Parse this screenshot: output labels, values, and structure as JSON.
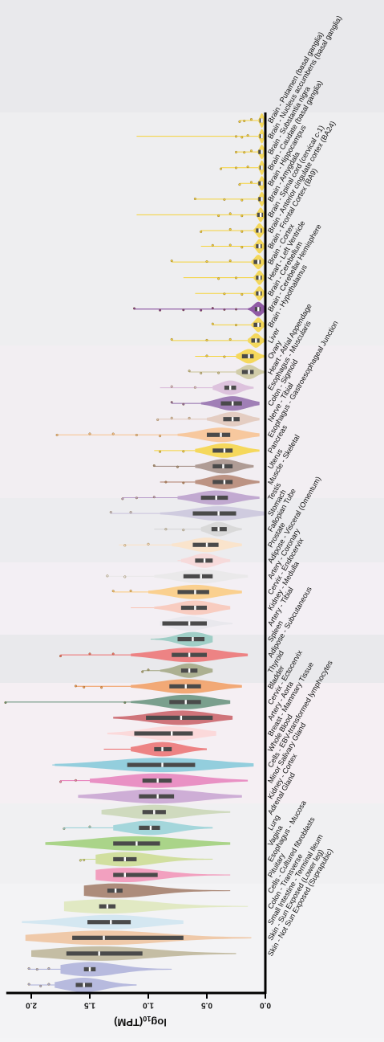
{
  "chart_data": {
    "type": "violin",
    "orientation": "horizontal",
    "axis": {
      "label_base": "log",
      "label_sub": "10",
      "label_rest": "(TPM)",
      "range": [
        0.0,
        2.2
      ],
      "reversed": true,
      "ticks": [
        0.0,
        0.5,
        1.0,
        1.5,
        2.0
      ],
      "tick_labels": [
        "0.0",
        "0.5",
        "1.0",
        "1.5",
        "2.0"
      ]
    },
    "grid": false,
    "legend": "none",
    "series": [
      {
        "name": "Brain - Putamen (basal ganglia)",
        "color": "#f5d33a",
        "q1": 0.02,
        "median": 0.03,
        "q3": 0.05,
        "min": 0.0,
        "max": 0.22,
        "wmax": 0.06,
        "outliers": [
          0.12,
          0.18,
          0.22
        ]
      },
      {
        "name": "Brain - Nucleus accumbens (basal ganglia)",
        "color": "#f5d33a",
        "q1": 0.02,
        "median": 0.03,
        "q3": 0.05,
        "min": 0.0,
        "max": 1.1,
        "wmax": 0.06,
        "outliers": [
          0.15,
          0.2,
          0.25
        ]
      },
      {
        "name": "Brain - Substantia nigra",
        "color": "#f5d33a",
        "q1": 0.02,
        "median": 0.03,
        "q3": 0.06,
        "min": 0.0,
        "max": 0.25,
        "wmax": 0.07,
        "outliers": [
          0.12,
          0.18,
          0.25
        ]
      },
      {
        "name": "Brain - Caudate (basal ganglia)",
        "color": "#f5d33a",
        "q1": 0.02,
        "median": 0.03,
        "q3": 0.05,
        "min": 0.0,
        "max": 0.38,
        "wmax": 0.06,
        "outliers": [
          0.15,
          0.25,
          0.38
        ]
      },
      {
        "name": "Brain - Hippocampus",
        "color": "#f5d33a",
        "q1": 0.02,
        "median": 0.03,
        "q3": 0.06,
        "min": 0.0,
        "max": 0.22,
        "wmax": 0.07,
        "outliers": [
          0.12,
          0.22
        ]
      },
      {
        "name": "Brain - Amygdala",
        "color": "#f5d33a",
        "q1": 0.02,
        "median": 0.03,
        "q3": 0.06,
        "min": 0.0,
        "max": 0.6,
        "wmax": 0.07,
        "outliers": [
          0.2,
          0.35,
          0.6
        ]
      },
      {
        "name": "Brain - Spinal cord (cervical c-1)",
        "color": "#f5d33a",
        "q1": 0.02,
        "median": 0.04,
        "q3": 0.07,
        "min": 0.0,
        "max": 1.1,
        "wmax": 0.08,
        "outliers": [
          0.2,
          0.3,
          0.4
        ]
      },
      {
        "name": "Brain - Anterior cingulate cortex (BA24)",
        "color": "#f5d33a",
        "q1": 0.03,
        "median": 0.05,
        "q3": 0.08,
        "min": 0.0,
        "max": 0.55,
        "wmax": 0.1,
        "outliers": [
          0.2,
          0.3,
          0.55
        ]
      },
      {
        "name": "Brain - Frontal Cortex (BA9)",
        "color": "#f5d33a",
        "q1": 0.03,
        "median": 0.05,
        "q3": 0.08,
        "min": 0.0,
        "max": 0.55,
        "wmax": 0.1,
        "outliers": [
          0.2,
          0.3,
          0.45
        ]
      },
      {
        "name": "Brain - Cortex",
        "color": "#f5d33a",
        "q1": 0.04,
        "median": 0.06,
        "q3": 0.1,
        "min": 0.0,
        "max": 0.8,
        "wmax": 0.12,
        "outliers": [
          0.3,
          0.5,
          0.8
        ]
      },
      {
        "name": "Heart - Left Ventricle",
        "color": "#f5d33a",
        "q1": 0.03,
        "median": 0.05,
        "q3": 0.08,
        "min": 0.0,
        "max": 0.7,
        "wmax": 0.1,
        "outliers": [
          0.25,
          0.4
        ]
      },
      {
        "name": "Brain - Cerebellum",
        "color": "#f5d33a",
        "q1": 0.03,
        "median": 0.05,
        "q3": 0.08,
        "min": 0.0,
        "max": 0.6,
        "wmax": 0.1,
        "outliers": [
          0.2,
          0.35
        ]
      },
      {
        "name": "Brain - Cerebellar Hemisphere",
        "color": "#7b3a94",
        "q1": 0.04,
        "median": 0.06,
        "q3": 0.09,
        "min": 0.0,
        "max": 1.12,
        "wmax": 0.15,
        "outliers": [
          0.25,
          0.35,
          0.45,
          0.55,
          0.7,
          0.9,
          1.12
        ]
      },
      {
        "name": "Brain - Hypothalamus",
        "color": "#f5d33a",
        "q1": 0.04,
        "median": 0.06,
        "q3": 0.1,
        "min": 0.0,
        "max": 0.45,
        "wmax": 0.12,
        "outliers": [
          0.25,
          0.45
        ]
      },
      {
        "name": "Liver",
        "color": "#f5d33a",
        "q1": 0.05,
        "median": 0.08,
        "q3": 0.12,
        "min": 0.0,
        "max": 0.8,
        "wmax": 0.15,
        "outliers": [
          0.3,
          0.5,
          0.8
        ]
      },
      {
        "name": "Ovary",
        "color": "#f5d33a",
        "q1": 0.1,
        "median": 0.14,
        "q3": 0.2,
        "min": 0.0,
        "max": 0.6,
        "wmax": 0.25,
        "outliers": [
          0.35,
          0.5
        ]
      },
      {
        "name": "Heart - Atrial Appendage",
        "color": "#c9c497",
        "q1": 0.1,
        "median": 0.14,
        "q3": 0.2,
        "min": 0.0,
        "max": 0.65,
        "wmax": 0.25,
        "outliers": [
          0.4,
          0.55,
          0.65
        ]
      },
      {
        "name": "Esophagus - Muscularis",
        "color": "#d8b8d8",
        "q1": 0.25,
        "median": 0.3,
        "q3": 0.35,
        "min": 0.1,
        "max": 0.9,
        "wmax": 0.45,
        "outliers": [
          0.6,
          0.8
        ]
      },
      {
        "name": "Colon - Sigmoid",
        "color": "#8e67a8",
        "q1": 0.2,
        "median": 0.28,
        "q3": 0.38,
        "min": 0.05,
        "max": 0.8,
        "wmax": 0.55,
        "outliers": [
          0.7,
          0.8
        ]
      },
      {
        "name": "Nerve - Tibial",
        "color": "#e0c6b7",
        "q1": 0.22,
        "median": 0.28,
        "q3": 0.36,
        "min": 0.05,
        "max": 0.92,
        "wmax": 0.5,
        "outliers": [
          0.65,
          0.8,
          0.92
        ]
      },
      {
        "name": "Esophagus - Gastroesophageal Junction",
        "color": "#f8c08b",
        "q1": 0.3,
        "median": 0.38,
        "q3": 0.5,
        "min": 0.05,
        "max": 1.78,
        "wmax": 0.75,
        "outliers": [
          0.9,
          1.1,
          1.3,
          1.5,
          1.78
        ]
      },
      {
        "name": "Pancreas",
        "color": "#f5d33a",
        "q1": 0.28,
        "median": 0.35,
        "q3": 0.45,
        "min": 0.05,
        "max": 0.95,
        "wmax": 0.6,
        "outliers": [
          0.7,
          0.9
        ]
      },
      {
        "name": "Uterus",
        "color": "#a08a80",
        "q1": 0.28,
        "median": 0.36,
        "q3": 0.45,
        "min": 0.1,
        "max": 0.95,
        "wmax": 0.6,
        "outliers": [
          0.75,
          0.95
        ]
      },
      {
        "name": "Muscle - Skeletal",
        "color": "#b07f6a",
        "q1": 0.28,
        "median": 0.35,
        "q3": 0.45,
        "min": 0.05,
        "max": 0.9,
        "wmax": 0.6,
        "outliers": [
          0.7,
          0.85
        ]
      },
      {
        "name": "Testis",
        "color": "#b79ac9",
        "q1": 0.32,
        "median": 0.42,
        "q3": 0.55,
        "min": 0.05,
        "max": 1.22,
        "wmax": 0.75,
        "outliers": [
          0.95,
          1.1,
          1.22
        ]
      },
      {
        "name": "Stomach",
        "color": "#c8c3dc",
        "q1": 0.25,
        "median": 0.4,
        "q3": 0.62,
        "min": 0.0,
        "max": 1.32,
        "wmax": 0.9,
        "outliers": [
          1.15,
          1.32
        ]
      },
      {
        "name": "Fallopian Tube",
        "color": "#d4d4d4",
        "q1": 0.33,
        "median": 0.4,
        "q3": 0.46,
        "min": 0.2,
        "max": 0.95,
        "wmax": 0.55,
        "outliers": [
          0.7,
          0.85
        ]
      },
      {
        "name": "Prostate",
        "color": "#fde2c4",
        "q1": 0.4,
        "median": 0.5,
        "q3": 0.62,
        "min": 0.2,
        "max": 1.25,
        "wmax": 0.8,
        "outliers": [
          1.0,
          1.2
        ]
      },
      {
        "name": "Adipose - Visceral (Omentum)",
        "color": "#f8d6d6",
        "q1": 0.45,
        "median": 0.52,
        "q3": 0.6,
        "min": 0.3,
        "max": 0.75,
        "wmax": 0.72,
        "outliers": []
      },
      {
        "name": "Artery - Coronary",
        "color": "#e8e8e8",
        "q1": 0.45,
        "median": 0.55,
        "q3": 0.7,
        "min": 0.15,
        "max": 1.35,
        "wmax": 0.95,
        "outliers": [
          1.2,
          1.35
        ]
      },
      {
        "name": "Cervix - Endocervix",
        "color": "#fbc979",
        "q1": 0.48,
        "median": 0.6,
        "q3": 0.75,
        "min": 0.2,
        "max": 1.3,
        "wmax": 1.0,
        "outliers": [
          1.15,
          1.3
        ]
      },
      {
        "name": "Kidney - Medulla",
        "color": "#f9c4b4",
        "q1": 0.5,
        "median": 0.6,
        "q3": 0.72,
        "min": 0.3,
        "max": 1.15,
        "wmax": 0.95,
        "outliers": []
      },
      {
        "name": "Artery - Tibial",
        "color": "#e6e6ec",
        "q1": 0.5,
        "median": 0.65,
        "q3": 0.88,
        "min": 0.28,
        "max": 0.9,
        "wmax": 0.9,
        "outliers": []
      },
      {
        "name": "Spleen",
        "color": "#8fc8bd",
        "q1": 0.52,
        "median": 0.62,
        "q3": 0.75,
        "min": 0.45,
        "max": 0.98,
        "wmax": 0.95,
        "outliers": []
      },
      {
        "name": "Adipose - Subcutaneous",
        "color": "#ee6d6d",
        "q1": 0.5,
        "median": 0.65,
        "q3": 0.8,
        "min": 0.15,
        "max": 1.75,
        "wmax": 1.15,
        "outliers": [
          1.3,
          1.5,
          1.75
        ]
      },
      {
        "name": "Thyroid",
        "color": "#9fa37d",
        "q1": 0.58,
        "median": 0.65,
        "q3": 0.72,
        "min": 0.45,
        "max": 1.05,
        "wmax": 0.9,
        "outliers": [
          1.0,
          1.05
        ]
      },
      {
        "name": "Bladder",
        "color": "#f29a5a",
        "q1": 0.55,
        "median": 0.68,
        "q3": 0.82,
        "min": 0.2,
        "max": 1.62,
        "wmax": 1.15,
        "outliers": [
          1.4,
          1.55,
          1.62
        ]
      },
      {
        "name": "Cervix - Ectocervix",
        "color": "#5f8e76",
        "q1": 0.55,
        "median": 0.68,
        "q3": 0.82,
        "min": 0.3,
        "max": 2.22,
        "wmax": 1.15,
        "outliers": [
          1.2,
          2.22
        ]
      },
      {
        "name": "Artery - Aorta",
        "color": "#c7595f",
        "q1": 0.45,
        "median": 0.72,
        "q3": 1.02,
        "min": 0.28,
        "max": 1.3,
        "wmax": 1.3,
        "outliers": []
      },
      {
        "name": "Breast - Mammary Tissue",
        "color": "#fcd4d4",
        "q1": 0.62,
        "median": 0.8,
        "q3": 1.12,
        "min": 0.42,
        "max": 1.35,
        "wmax": 1.35,
        "outliers": []
      },
      {
        "name": "Whole Blood",
        "color": "#ec6b6b",
        "q1": 0.8,
        "median": 0.88,
        "q3": 0.95,
        "min": 0.5,
        "max": 1.38,
        "wmax": 1.15,
        "outliers": []
      },
      {
        "name": "Cells - EBV-transformed lymphocytes",
        "color": "#7ec7d8",
        "q1": 0.6,
        "median": 0.88,
        "q3": 1.18,
        "min": 0.1,
        "max": 1.82,
        "wmax": 1.8,
        "outliers": []
      },
      {
        "name": "Minor Salivary Gland",
        "color": "#e77cb9",
        "q1": 0.8,
        "median": 0.92,
        "q3": 1.05,
        "min": 0.15,
        "max": 1.75,
        "wmax": 1.5,
        "outliers": [
          1.62,
          1.75
        ]
      },
      {
        "name": "Kidney - Cortex",
        "color": "#c6a0cf",
        "q1": 0.78,
        "median": 0.92,
        "q3": 1.08,
        "min": 0.2,
        "max": 1.6,
        "wmax": 1.6,
        "outliers": []
      },
      {
        "name": "Adrenal Gland",
        "color": "#c7d4b2",
        "q1": 0.85,
        "median": 0.95,
        "q3": 1.05,
        "min": 0.3,
        "max": 1.4,
        "wmax": 1.4,
        "outliers": []
      },
      {
        "name": "Lung",
        "color": "#92cfd5",
        "q1": 0.9,
        "median": 0.98,
        "q3": 1.08,
        "min": 0.45,
        "max": 1.72,
        "wmax": 1.3,
        "outliers": [
          1.5,
          1.72
        ]
      },
      {
        "name": "Vagina",
        "color": "#9acd72",
        "q1": 0.9,
        "median": 1.1,
        "q3": 1.3,
        "min": 0.3,
        "max": 1.88,
        "wmax": 1.88,
        "outliers": []
      },
      {
        "name": "Esophagus - Mucosa",
        "color": "#c9db8c",
        "q1": 1.1,
        "median": 1.2,
        "q3": 1.3,
        "min": 0.45,
        "max": 1.58,
        "wmax": 1.45,
        "outliers": [
          1.55,
          1.58
        ]
      },
      {
        "name": "Pituitary",
        "color": "#f18db3",
        "q1": 0.92,
        "median": 1.2,
        "q3": 1.3,
        "min": 0.3,
        "max": 1.45,
        "wmax": 1.45,
        "outliers": []
      },
      {
        "name": "Cells - Cultured fibroblasts",
        "color": "#9e7560",
        "q1": 1.22,
        "median": 1.28,
        "q3": 1.35,
        "min": 0.3,
        "max": 1.55,
        "wmax": 1.55,
        "outliers": []
      },
      {
        "name": "Colon - Transverse",
        "color": "#dde6b8",
        "q1": 1.28,
        "median": 1.35,
        "q3": 1.42,
        "min": 0.15,
        "max": 1.72,
        "wmax": 1.72,
        "outliers": []
      },
      {
        "name": "Small Intestine - Terminal Ileum",
        "color": "#cde4f0",
        "q1": 1.15,
        "median": 1.32,
        "q3": 1.52,
        "min": 0.7,
        "max": 2.08,
        "wmax": 2.08,
        "outliers": []
      },
      {
        "name": "Skin - Sun Exposed (Lower leg)",
        "color": "#eec099",
        "q1": 0.7,
        "median": 1.38,
        "q3": 1.65,
        "min": 0.12,
        "max": 2.05,
        "wmax": 2.05,
        "outliers": []
      },
      {
        "name": "Skin - Not Sun Exposed (Suprapubic)",
        "color": "#b9b193",
        "q1": 1.05,
        "median": 1.42,
        "q3": 1.7,
        "min": 0.25,
        "max": 2.0,
        "wmax": 2.0,
        "outliers": []
      },
      {
        "name": "",
        "color": "#a9add9",
        "q1": 1.45,
        "median": 1.5,
        "q3": 1.55,
        "min": 0.8,
        "max": 2.02,
        "wmax": 1.75,
        "outliers": [
          1.85,
          1.95,
          2.02
        ]
      },
      {
        "name": "",
        "color": "#a9add9",
        "q1": 1.48,
        "median": 1.55,
        "q3": 1.62,
        "min": 1.1,
        "max": 2.02,
        "wmax": 1.8,
        "outliers": [
          1.85,
          1.92,
          2.02
        ]
      }
    ]
  }
}
